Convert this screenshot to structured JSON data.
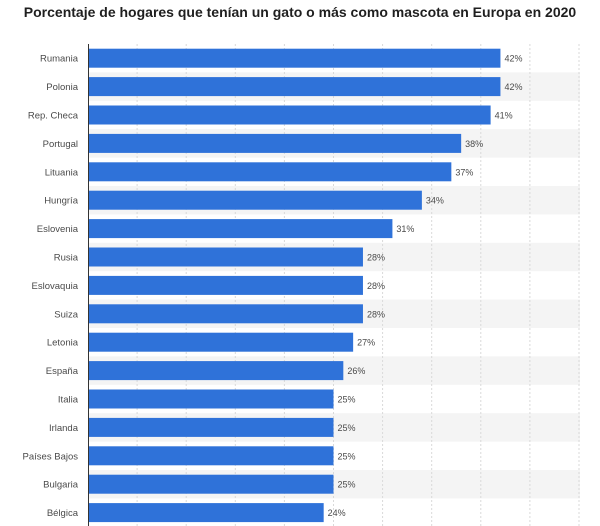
{
  "chart_data": {
    "type": "bar",
    "orientation": "horizontal",
    "title": "Porcentaje de hogares que tenían un gato o más como mascota en Europa en 2020",
    "xlabel": "",
    "ylabel": "",
    "xlim": [
      0,
      50
    ],
    "categories": [
      "Rumania",
      "Polonia",
      "Rep. Checa",
      "Portugal",
      "Lituania",
      "Hungría",
      "Eslovenia",
      "Rusia",
      "Eslovaquia",
      "Suiza",
      "Letonia",
      "España",
      "Italia",
      "Irlanda",
      "Países Bajos",
      "Bulgaria",
      "Bélgica"
    ],
    "values": [
      42,
      42,
      41,
      38,
      37,
      34,
      31,
      28,
      28,
      28,
      27,
      26,
      25,
      25,
      25,
      25,
      24
    ],
    "value_labels": [
      "42%",
      "42%",
      "41%",
      "38%",
      "37%",
      "34%",
      "31%",
      "28%",
      "28%",
      "28%",
      "27%",
      "26%",
      "25%",
      "25%",
      "25%",
      "25%",
      "24%"
    ],
    "bar_color": "#2f72d9"
  }
}
